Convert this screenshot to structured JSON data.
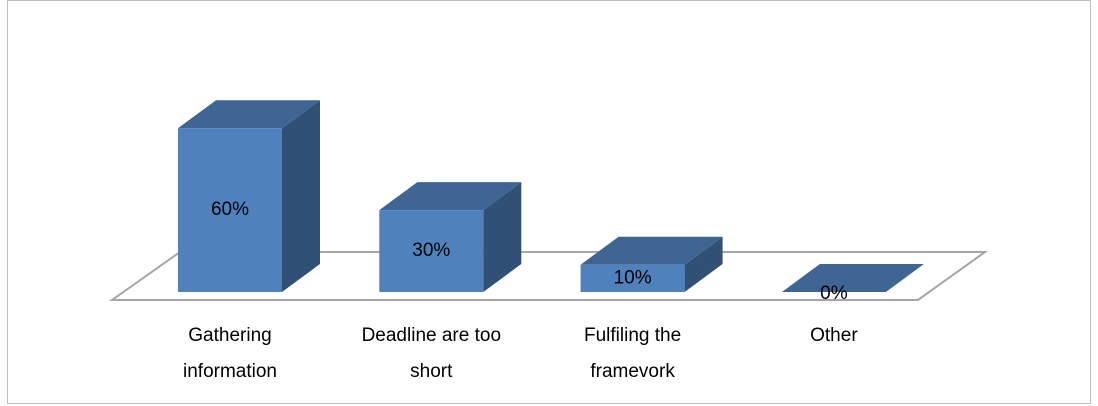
{
  "chart_data": {
    "type": "bar3d",
    "categories": [
      "Gathering information",
      "Deadline are too short",
      "Fulfiling the framevork",
      "Other"
    ],
    "values": [
      60,
      30,
      10,
      0
    ],
    "value_labels": [
      "60%",
      "30%",
      "10%",
      "0%"
    ],
    "color": "#4f81bd"
  }
}
